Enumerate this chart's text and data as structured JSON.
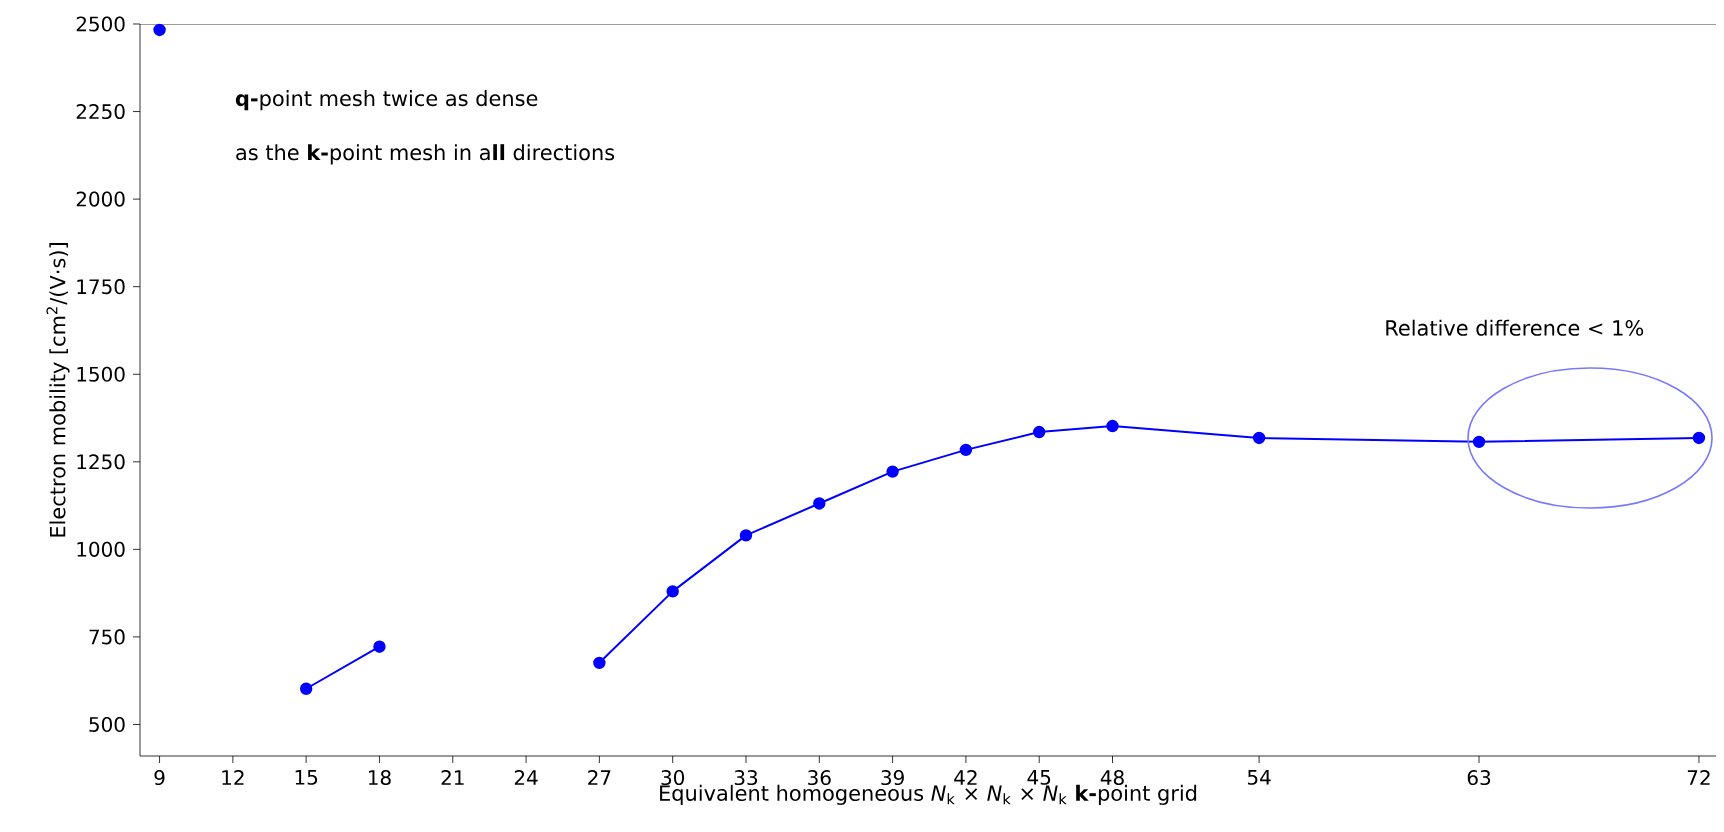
{
  "chart_data": {
    "type": "line",
    "xlabel": "Equivalent homogeneous *N*$_{k}$ × *N*$_{k}$ × *N*$_{k}$ **k-**point grid",
    "ylabel": "Electron mobility [cm$^{2}$/(V·s)]",
    "x": [
      9,
      12,
      15,
      18,
      21,
      24,
      27,
      30,
      33,
      36,
      39,
      42,
      45,
      48,
      54,
      63,
      72
    ],
    "series": [
      {
        "color": "#0000ff",
        "values": [
          2483,
          null,
          602,
          722,
          null,
          null,
          676,
          880,
          1040,
          1131,
          1222,
          1284,
          1335,
          1352,
          1318,
          1307,
          1318
        ]
      }
    ],
    "xlim": [
      8.2,
      72.7
    ],
    "ylim": [
      410,
      2500
    ],
    "xticks": [
      9,
      12,
      15,
      18,
      21,
      24,
      27,
      30,
      33,
      36,
      39,
      42,
      45,
      48,
      54,
      63,
      72
    ],
    "yticks": [
      500,
      750,
      1000,
      1250,
      1500,
      1750,
      2000,
      2250,
      2500
    ],
    "marker": "circle",
    "line_style": "solid",
    "grid": false,
    "annotations": [
      "**q-**point mesh twice as dense",
      "as the **k-**point mesh in a**ll** directions",
      "Relative difference < 1%"
    ]
  }
}
